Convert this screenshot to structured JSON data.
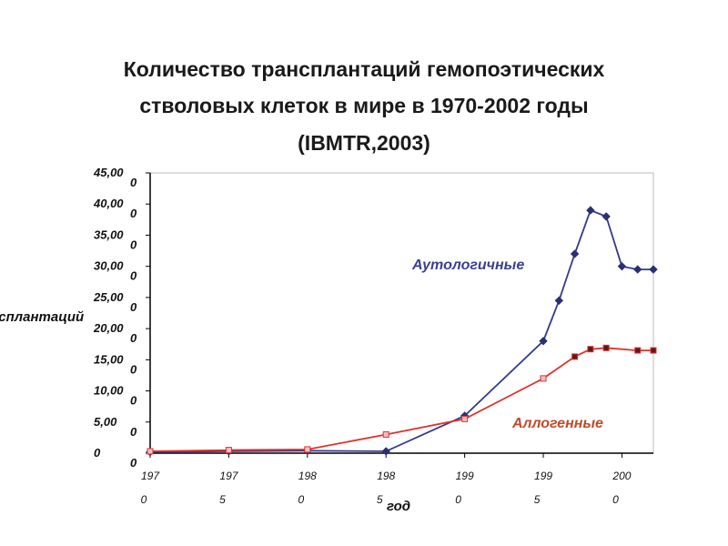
{
  "title": {
    "line1": "Количество трансплантаций гемопоэтических",
    "line2": "стволовых клеток в мире в 1970-2002 годы",
    "line3": "(IBMTR,2003)"
  },
  "chart_data": {
    "type": "line",
    "xlabel": "год",
    "ylabel": "Число трансплантаций",
    "xlim": [
      1970,
      2002
    ],
    "ylim": [
      0,
      45000
    ],
    "y_ticks": [
      {
        "top": "45,00",
        "bottom": "0"
      },
      {
        "top": "40,00",
        "bottom": "0"
      },
      {
        "top": "35,00",
        "bottom": "0"
      },
      {
        "top": "30,00",
        "bottom": "0"
      },
      {
        "top": "25,00",
        "bottom": "0"
      },
      {
        "top": "20,00",
        "bottom": "0"
      },
      {
        "top": "15,00",
        "bottom": "0"
      },
      {
        "top": "10,00",
        "bottom": "0"
      },
      {
        "top": "5,00",
        "bottom": "0"
      },
      {
        "top": "0",
        "bottom": "0"
      }
    ],
    "y_tick_values": [
      45000,
      40000,
      35000,
      30000,
      25000,
      20000,
      15000,
      10000,
      5000,
      0
    ],
    "x_ticks": [
      {
        "value": 1970,
        "top": "197",
        "bottom": "0"
      },
      {
        "value": 1975,
        "top": "197",
        "bottom": "5"
      },
      {
        "value": 1980,
        "top": "198",
        "bottom": "0"
      },
      {
        "value": 1985,
        "top": "198",
        "bottom": "5"
      },
      {
        "value": 1990,
        "top": "199",
        "bottom": "0"
      },
      {
        "value": 1995,
        "top": "199",
        "bottom": "5"
      },
      {
        "value": 2000,
        "top": "200",
        "bottom": "0"
      }
    ],
    "series": [
      {
        "name": "Аутологичные",
        "color": "#333b8a",
        "points": [
          {
            "x": 1970,
            "y": 200
          },
          {
            "x": 1975,
            "y": 300
          },
          {
            "x": 1980,
            "y": 400
          },
          {
            "x": 1985,
            "y": 300
          },
          {
            "x": 1990,
            "y": 6000
          },
          {
            "x": 1995,
            "y": 18000
          },
          {
            "x": 1996,
            "y": 24500
          },
          {
            "x": 1997,
            "y": 32000
          },
          {
            "x": 1998,
            "y": 39000
          },
          {
            "x": 1999,
            "y": 38000
          },
          {
            "x": 2000,
            "y": 30000
          },
          {
            "x": 2001,
            "y": 29500
          },
          {
            "x": 2002,
            "y": 29500
          }
        ]
      },
      {
        "name": "Аллогенные",
        "color": "#e0312c",
        "points": [
          {
            "x": 1970,
            "y": 300
          },
          {
            "x": 1975,
            "y": 500
          },
          {
            "x": 1980,
            "y": 600
          },
          {
            "x": 1985,
            "y": 3000
          },
          {
            "x": 1990,
            "y": 5500
          },
          {
            "x": 1995,
            "y": 12000
          },
          {
            "x": 1997,
            "y": 15500
          },
          {
            "x": 1998,
            "y": 16700
          },
          {
            "x": 1999,
            "y": 16900
          },
          {
            "x": 2001,
            "y": 16500
          },
          {
            "x": 2002,
            "y": 16500
          }
        ]
      }
    ],
    "series_label_colors": [
      "#3a3f8f",
      "#c04a2a"
    ]
  }
}
